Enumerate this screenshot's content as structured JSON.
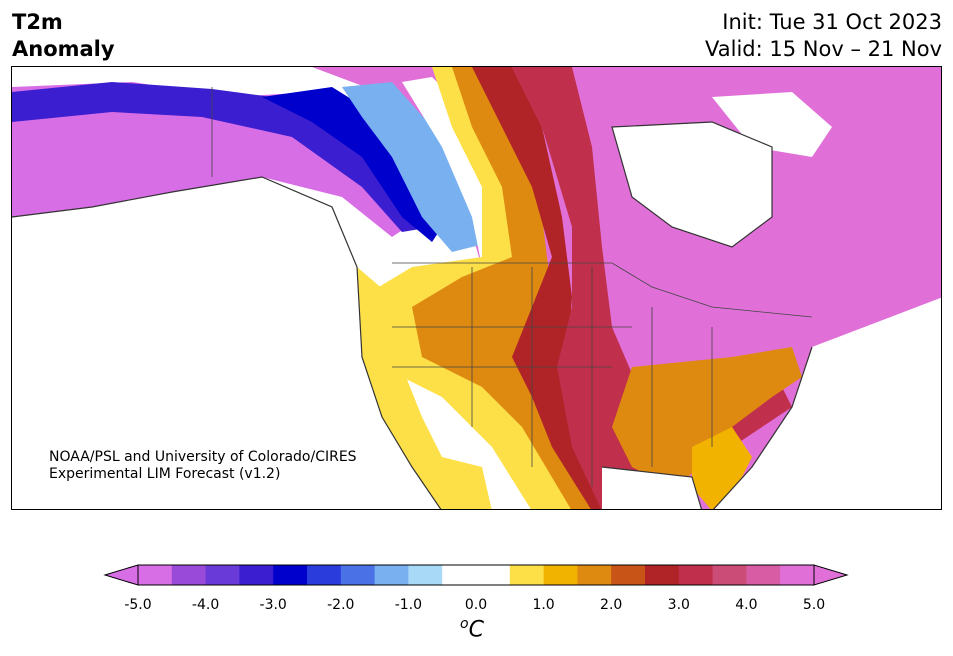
{
  "header": {
    "variable_line1": "T2m",
    "variable_line2": "Anomaly",
    "init": "Init: Tue 31 Oct 2023",
    "valid": "Valid: 15 Nov – 21 Nov"
  },
  "credit": {
    "line1": "NOAA/PSL and University of Colorado/CIRES",
    "line2": "Experimental LIM Forecast (v1.2)"
  },
  "colorbar": {
    "ticks": [
      "-5.0",
      "-4.0",
      "-3.0",
      "-2.0",
      "-1.0",
      "0.0",
      "1.0",
      "2.0",
      "3.0",
      "4.0",
      "5.0"
    ],
    "unit_sup": "o",
    "unit_base": "C",
    "colors": [
      "#d86ee6",
      "#9a4ad8",
      "#6a3ad8",
      "#3a1ecf",
      "#0000cc",
      "#2a3cdc",
      "#4a72e6",
      "#78b0f0",
      "#a8daf8",
      "#ffffff",
      "#ffffff",
      "#fde048",
      "#f2b200",
      "#de8a10",
      "#c85418",
      "#b02428",
      "#c0304c",
      "#cc4c78",
      "#d85ca4",
      "#e070d8"
    ]
  }
}
